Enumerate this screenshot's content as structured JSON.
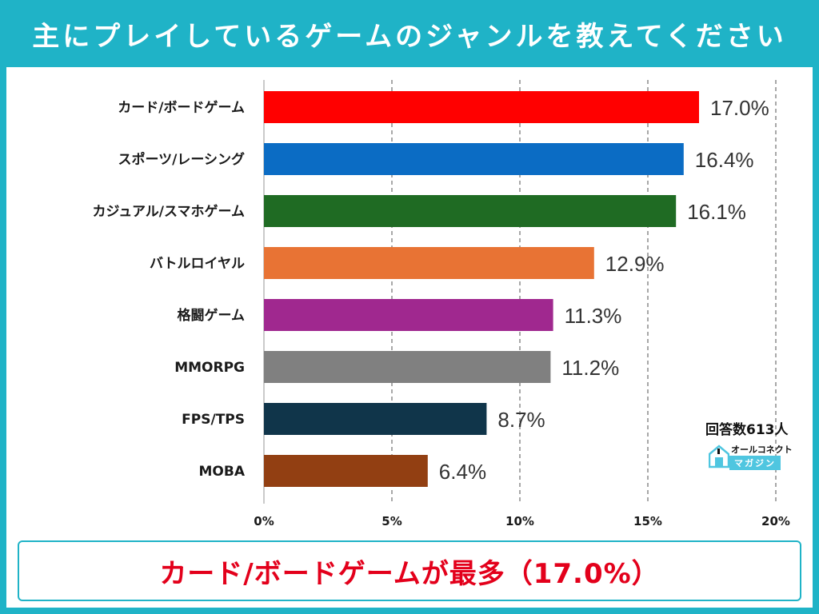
{
  "title": "主にプレイしているゲームのジャンルを教えてください",
  "respondents": "回答数613人",
  "logo": {
    "line1": "オールコネクト",
    "line2": "マガジン"
  },
  "conclusion": "カード/ボードゲームが最多（17.0%）",
  "colors": {
    "frame": "#1fb3c7",
    "conclusion_text": "#e3001b"
  },
  "chart_data": {
    "type": "bar",
    "orientation": "horizontal",
    "title": "",
    "xlabel": "",
    "ylabel": "",
    "xlim": [
      0,
      20
    ],
    "x_ticks": [
      "0%",
      "5%",
      "10%",
      "15%",
      "20%"
    ],
    "x_tick_values": [
      0,
      5,
      10,
      15,
      20
    ],
    "grid": "vertical dashed",
    "categories": [
      "カード/ボードゲーム",
      "スポーツ/レーシング",
      "カジュアル/スマホゲーム",
      "バトルロイヤル",
      "格闘ゲーム",
      "MMORPG",
      "FPS/TPS",
      "MOBA"
    ],
    "values": [
      17.0,
      16.4,
      16.1,
      12.9,
      11.3,
      11.2,
      8.7,
      6.4
    ],
    "value_labels": [
      "17.0%",
      "16.4%",
      "16.1%",
      "12.9%",
      "11.3%",
      "11.2%",
      "8.7%",
      "6.4%"
    ],
    "bar_colors": [
      "#ff0000",
      "#0b6cc4",
      "#1f6b23",
      "#e87334",
      "#a0288f",
      "#808080",
      "#10354a",
      "#923f12"
    ]
  }
}
